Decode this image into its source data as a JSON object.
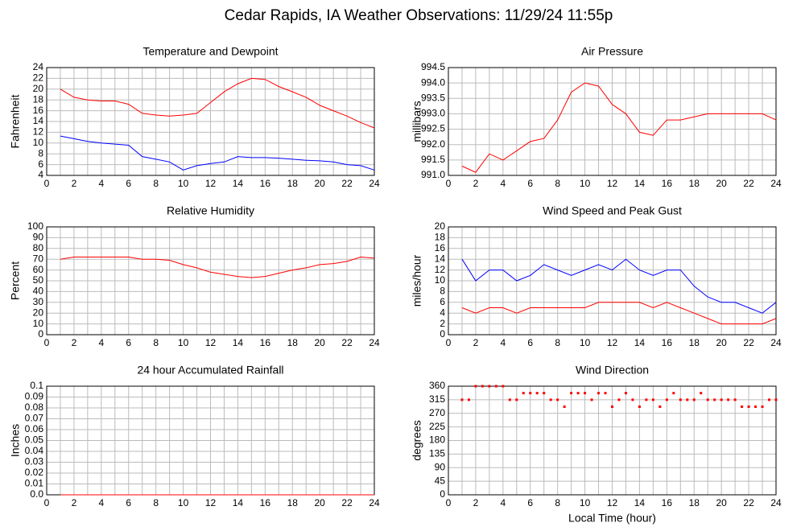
{
  "title": "Cedar Rapids, IA Weather Observations: 11/29/24 11:55p",
  "chart_data": [
    {
      "type": "line",
      "title": "Temperature and Dewpoint",
      "ylabel": "Fahrenheit",
      "x": [
        1,
        2,
        3,
        4,
        5,
        6,
        7,
        8,
        9,
        10,
        11,
        12,
        13,
        14,
        15,
        16,
        17,
        18,
        19,
        20,
        21,
        22,
        23,
        24
      ],
      "series": [
        {
          "color": "#ff0000",
          "values": [
            20,
            18.5,
            18,
            17.8,
            17.8,
            17.2,
            15.5,
            15.2,
            15,
            15.2,
            15.5,
            17.5,
            19.5,
            21,
            22,
            21.8,
            20.5,
            19.5,
            18.5,
            17,
            16,
            15,
            13.8,
            12.8
          ]
        },
        {
          "color": "#0000ff",
          "values": [
            11.3,
            10.8,
            10.3,
            10,
            9.8,
            9.6,
            7.5,
            7,
            6.5,
            5,
            5.8,
            6.2,
            6.5,
            7.5,
            7.3,
            7.3,
            7.2,
            7,
            6.8,
            6.7,
            6.5,
            6,
            5.8,
            5
          ]
        }
      ],
      "xlim": [
        0,
        24
      ],
      "xticks": [
        0,
        2,
        4,
        6,
        8,
        10,
        12,
        14,
        16,
        18,
        20,
        22,
        24
      ],
      "ylim": [
        4,
        24
      ],
      "yticks": [
        4,
        6,
        8,
        10,
        12,
        14,
        16,
        18,
        20,
        22,
        24
      ],
      "grid": true
    },
    {
      "type": "line",
      "title": "Air Pressure",
      "ylabel": "millibars",
      "x": [
        1,
        2,
        3,
        4,
        5,
        6,
        7,
        8,
        9,
        10,
        11,
        12,
        13,
        14,
        15,
        16,
        17,
        18,
        19,
        20,
        21,
        22,
        23,
        24
      ],
      "series": [
        {
          "color": "#ff0000",
          "values": [
            991.3,
            991.1,
            991.7,
            991.5,
            991.8,
            992.1,
            992.2,
            992.8,
            993.7,
            994.0,
            993.9,
            993.3,
            993.0,
            992.4,
            992.3,
            992.8,
            992.8,
            992.9,
            993.0,
            993.0,
            993.0,
            993.0,
            993.0,
            992.8
          ]
        }
      ],
      "xlim": [
        0,
        24
      ],
      "xticks": [
        0,
        2,
        4,
        6,
        8,
        10,
        12,
        14,
        16,
        18,
        20,
        22,
        24
      ],
      "ylim": [
        991,
        994.5
      ],
      "yticks": [
        {
          "value": 991,
          "label": "991.0"
        },
        991.5,
        {
          "value": 992,
          "label": "992.0"
        },
        992.5,
        {
          "value": 993,
          "label": "993.0"
        },
        993.5,
        {
          "value": 994,
          "label": "994.0"
        },
        994.5
      ],
      "grid": true
    },
    {
      "type": "line",
      "title": "Relative Humidity",
      "ylabel": "Percent",
      "x": [
        1,
        2,
        3,
        4,
        5,
        6,
        7,
        8,
        9,
        10,
        11,
        12,
        13,
        14,
        15,
        16,
        17,
        18,
        19,
        20,
        21,
        22,
        23,
        24
      ],
      "series": [
        {
          "color": "#ff0000",
          "values": [
            70,
            72,
            72,
            72,
            72,
            72,
            70,
            70,
            69,
            65,
            62,
            58,
            56,
            54,
            53,
            54,
            57,
            60,
            62,
            65,
            66,
            68,
            72,
            71
          ]
        }
      ],
      "xlim": [
        0,
        24
      ],
      "xticks": [
        0,
        2,
        4,
        6,
        8,
        10,
        12,
        14,
        16,
        18,
        20,
        22,
        24
      ],
      "ylim": [
        0,
        100
      ],
      "yticks": [
        0,
        10,
        20,
        30,
        40,
        50,
        60,
        70,
        80,
        90,
        100
      ],
      "grid": true
    },
    {
      "type": "line",
      "title": "Wind Speed and Peak Gust",
      "ylabel": "miles/hour",
      "x": [
        1,
        2,
        3,
        4,
        5,
        6,
        7,
        8,
        9,
        10,
        11,
        12,
        13,
        14,
        15,
        16,
        17,
        18,
        19,
        20,
        21,
        22,
        23,
        24
      ],
      "series": [
        {
          "color": "#0000ff",
          "values": [
            14,
            10,
            12,
            12,
            10,
            11,
            13,
            12,
            11,
            12,
            13,
            12,
            14,
            12,
            11,
            12,
            12,
            9,
            7,
            6,
            6,
            5,
            4,
            6
          ]
        },
        {
          "color": "#ff0000",
          "values": [
            5,
            4,
            5,
            5,
            4,
            5,
            5,
            5,
            5,
            5,
            6,
            6,
            6,
            6,
            5,
            6,
            5,
            4,
            3,
            2,
            2,
            2,
            2,
            3
          ]
        }
      ],
      "xlim": [
        0,
        24
      ],
      "xticks": [
        0,
        2,
        4,
        6,
        8,
        10,
        12,
        14,
        16,
        18,
        20,
        22,
        24
      ],
      "ylim": [
        0,
        20
      ],
      "yticks": [
        0,
        2,
        4,
        6,
        8,
        10,
        12,
        14,
        16,
        18,
        20
      ],
      "grid": true
    },
    {
      "type": "line",
      "title": "24 hour Accumulated Rainfall",
      "ylabel": "Inches",
      "x": [
        1,
        2,
        3,
        4,
        5,
        6,
        7,
        8,
        9,
        10,
        11,
        12,
        13,
        14,
        15,
        16,
        17,
        18,
        19,
        20,
        21,
        22,
        23,
        24
      ],
      "series": [
        {
          "color": "#ff0000",
          "values": [
            0,
            0,
            0,
            0,
            0,
            0,
            0,
            0,
            0,
            0,
            0,
            0,
            0,
            0,
            0,
            0,
            0,
            0,
            0,
            0,
            0,
            0,
            0,
            0
          ]
        }
      ],
      "xlim": [
        0,
        24
      ],
      "xticks": [
        0,
        2,
        4,
        6,
        8,
        10,
        12,
        14,
        16,
        18,
        20,
        22,
        24
      ],
      "ylim": [
        0,
        0.1
      ],
      "yticks": [
        {
          "value": 0,
          "label": "0.0"
        },
        0.01,
        0.02,
        0.03,
        0.04,
        0.05,
        0.06,
        0.07,
        0.08,
        0.09,
        0.1
      ],
      "grid": true
    },
    {
      "type": "scatter",
      "title": "Wind Direction",
      "ylabel": "degrees",
      "xlabel": "Local Time (hour)",
      "x": [
        1,
        1.5,
        2,
        2.5,
        3,
        3.5,
        4,
        4.5,
        5,
        5.5,
        6,
        6.5,
        7,
        7.5,
        8,
        8.5,
        9,
        9.5,
        10,
        10.5,
        11,
        11.5,
        12,
        12.5,
        13,
        13.5,
        14,
        14.5,
        15,
        15.5,
        16,
        16.5,
        17,
        17.5,
        18,
        18.5,
        19,
        19.5,
        20,
        20.5,
        21,
        21.5,
        22,
        22.5,
        23,
        23.5,
        24
      ],
      "series": [
        {
          "color": "#ff0000",
          "values": [
            315,
            315,
            360,
            360,
            360,
            360,
            360,
            315,
            315,
            337,
            337,
            337,
            337,
            315,
            315,
            292,
            337,
            337,
            337,
            315,
            337,
            337,
            292,
            315,
            337,
            315,
            292,
            315,
            315,
            292,
            315,
            337,
            315,
            315,
            315,
            337,
            315,
            315,
            315,
            315,
            315,
            292,
            292,
            292,
            292,
            315,
            315
          ]
        }
      ],
      "xlim": [
        0,
        24
      ],
      "xticks": [
        0,
        2,
        4,
        6,
        8,
        10,
        12,
        14,
        16,
        18,
        20,
        22,
        24
      ],
      "ylim": [
        0,
        360
      ],
      "yticks": [
        0,
        45,
        90,
        135,
        180,
        225,
        270,
        315,
        360
      ],
      "grid": true
    }
  ]
}
